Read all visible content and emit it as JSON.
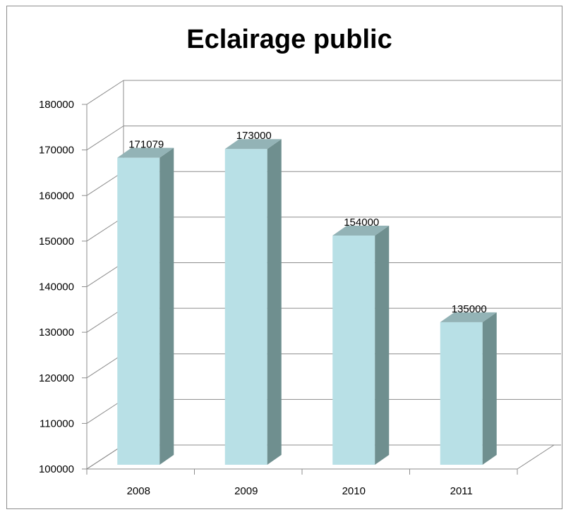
{
  "chart_data": {
    "type": "bar",
    "title": "Eclairage public",
    "categories": [
      "2008",
      "2009",
      "2010",
      "2011"
    ],
    "values": [
      171079,
      173000,
      154000,
      135000
    ],
    "data_labels": [
      "171079",
      "173000",
      "154000",
      "135000"
    ],
    "y_ticks": [
      "100000",
      "110000",
      "120000",
      "130000",
      "140000",
      "150000",
      "160000",
      "170000",
      "180000"
    ],
    "ylim": [
      100000,
      180000
    ],
    "grid": true,
    "legend": "none",
    "style": "3d-column",
    "colors": {
      "bar_front": "#b8e0e6",
      "bar_side": "#6f8f8f",
      "bar_top": "#93b3b6",
      "grid": "#8c8c8c"
    }
  }
}
